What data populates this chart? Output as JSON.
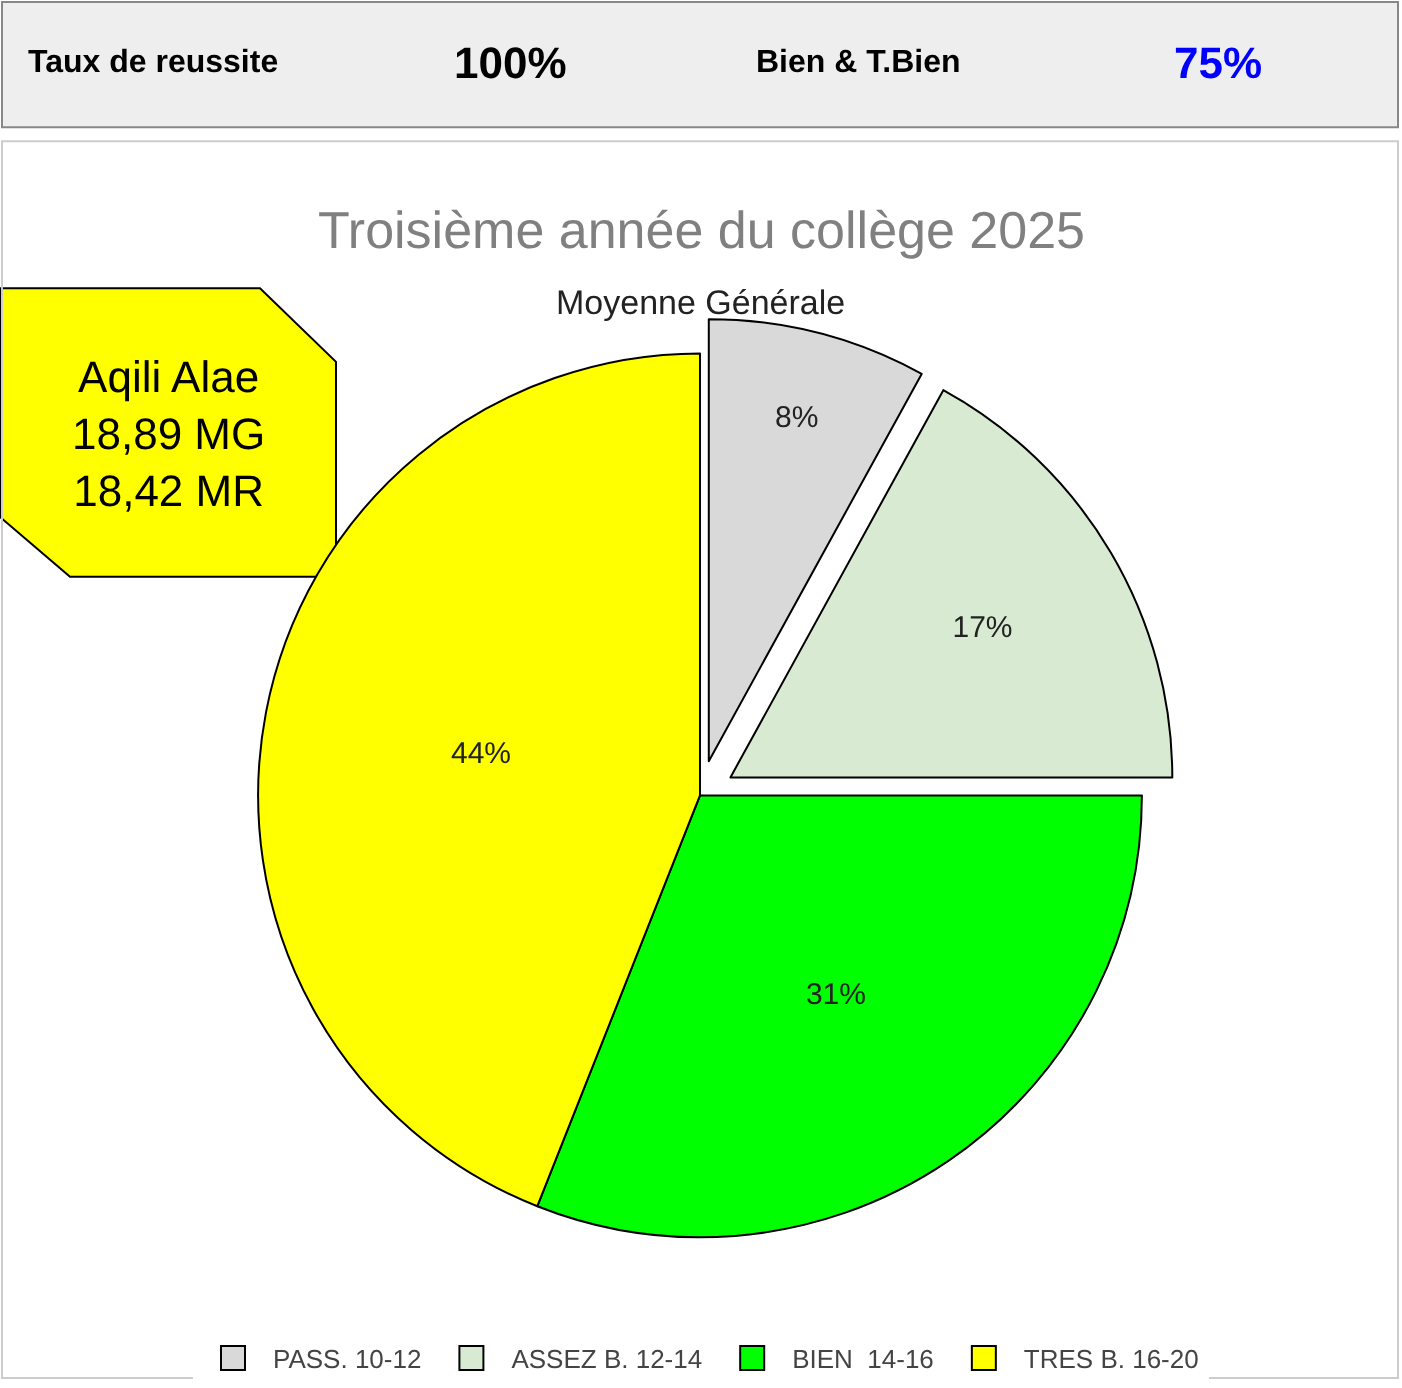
{
  "chart_data": {
    "type": "pie",
    "title": "Troisième année du collège 2025",
    "subtitle": "Moyenne Générale",
    "categories": [
      "PASS. 10-12",
      "ASSEZ B. 12-14",
      "BIEN  14-16",
      "TRES B. 16-20"
    ],
    "values": [
      8,
      17,
      31,
      44
    ],
    "colors": [
      "#d9d9d9",
      "#d9ead3",
      "#00ff00",
      "#ffff00"
    ],
    "value_labels": [
      "8%",
      "17%",
      "31%",
      "44%"
    ],
    "legend": "bottom",
    "annotations": [
      "Taux de reussite",
      "100%",
      "Bien & T.Bien",
      "75%",
      "Aqili Alae\n18,89 MG\n18,42 MR"
    ]
  }
}
